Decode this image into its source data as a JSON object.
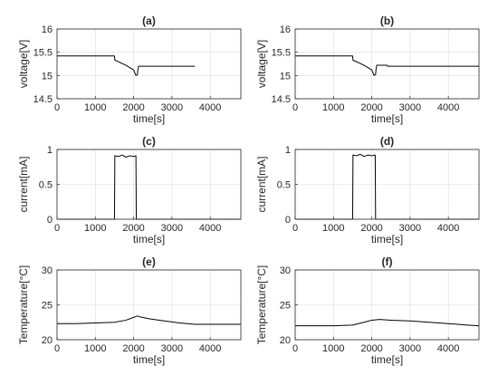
{
  "chart_data": [
    {
      "type": "line",
      "title": "(a)",
      "xlabel": "time[s]",
      "ylabel": "voltage[V]",
      "xlim": [
        0,
        4800
      ],
      "ylim": [
        14.5,
        16
      ],
      "xticks": [
        0,
        1000,
        2000,
        3000,
        4000
      ],
      "xtick_labels": [
        "0",
        "1000",
        "2000",
        "3000",
        "4000"
      ],
      "yticks": [
        14.5,
        15,
        15.5,
        16
      ],
      "ytick_labels": [
        "14.5",
        "15",
        "15.5",
        "16"
      ],
      "grid": true,
      "series": [
        {
          "x": [
            0,
            1500,
            1510,
            1800,
            2000,
            2040,
            2060,
            2100,
            2110,
            2130,
            2200,
            2500,
            3600
          ],
          "y": [
            15.42,
            15.42,
            15.33,
            15.22,
            15.12,
            15.04,
            15.0,
            15.02,
            15.12,
            15.2,
            15.2,
            15.2,
            15.2
          ]
        }
      ]
    },
    {
      "type": "line",
      "title": "(b)",
      "xlabel": "time[s]",
      "ylabel": "voltage[V]",
      "xlim": [
        0,
        4800
      ],
      "ylim": [
        14.5,
        16
      ],
      "xticks": [
        0,
        1000,
        2000,
        3000,
        4000
      ],
      "xtick_labels": [
        "0",
        "1000",
        "2000",
        "3000",
        "4000"
      ],
      "yticks": [
        14.5,
        15,
        15.5,
        16
      ],
      "ytick_labels": [
        "14.5",
        "15",
        "15.5",
        "16"
      ],
      "grid": true,
      "series": [
        {
          "x": [
            0,
            1500,
            1510,
            1800,
            2000,
            2040,
            2060,
            2100,
            2110,
            2130,
            2200,
            2400,
            2410,
            2500,
            3600,
            4800
          ],
          "y": [
            15.42,
            15.42,
            15.33,
            15.22,
            15.12,
            15.04,
            15.0,
            15.02,
            15.12,
            15.22,
            15.22,
            15.22,
            15.2,
            15.2,
            15.2,
            15.2
          ]
        }
      ]
    },
    {
      "type": "line",
      "title": "(c)",
      "xlabel": "time[s]",
      "ylabel": "current[mA]",
      "xlim": [
        0,
        4800
      ],
      "ylim": [
        0,
        1
      ],
      "xticks": [
        0,
        1000,
        2000,
        3000,
        4000
      ],
      "xtick_labels": [
        "0",
        "1000",
        "2000",
        "3000",
        "4000"
      ],
      "yticks": [
        0,
        0.5,
        1
      ],
      "ytick_labels": [
        "0",
        "0.5",
        "1"
      ],
      "grid": true,
      "series": [
        {
          "x": [
            0,
            1500,
            1510,
            1600,
            1700,
            1800,
            1900,
            2000,
            2060,
            2070,
            4800
          ],
          "y": [
            0,
            0,
            0.91,
            0.9,
            0.92,
            0.89,
            0.91,
            0.9,
            0.91,
            0,
            0
          ]
        }
      ]
    },
    {
      "type": "line",
      "title": "(d)",
      "xlabel": "time[s]",
      "ylabel": "current[mA]",
      "xlim": [
        0,
        4800
      ],
      "ylim": [
        0,
        1
      ],
      "xticks": [
        0,
        1000,
        2000,
        3000,
        4000
      ],
      "xtick_labels": [
        "0",
        "1000",
        "2000",
        "3000",
        "4000"
      ],
      "yticks": [
        0,
        0.5,
        1
      ],
      "ytick_labels": [
        "0",
        "0.5",
        "1"
      ],
      "grid": true,
      "series": [
        {
          "x": [
            0,
            1500,
            1510,
            1600,
            1700,
            1800,
            1900,
            2000,
            2090,
            2100,
            4800
          ],
          "y": [
            0,
            0,
            0.92,
            0.91,
            0.93,
            0.9,
            0.92,
            0.91,
            0.92,
            0,
            0
          ]
        }
      ]
    },
    {
      "type": "line",
      "title": "(e)",
      "xlabel": "time[s]",
      "ylabel": "Temperature[°C]",
      "xlim": [
        0,
        4800
      ],
      "ylim": [
        20,
        30
      ],
      "xticks": [
        0,
        1000,
        2000,
        3000,
        4000
      ],
      "xtick_labels": [
        "0",
        "1000",
        "2000",
        "3000",
        "4000"
      ],
      "yticks": [
        20,
        25,
        30
      ],
      "ytick_labels": [
        "20",
        "25",
        "30"
      ],
      "grid": true,
      "series": [
        {
          "x": [
            0,
            500,
            1000,
            1500,
            1800,
            2000,
            2100,
            2150,
            2400,
            2800,
            3200,
            3600,
            4000,
            4800
          ],
          "y": [
            22.3,
            22.3,
            22.4,
            22.5,
            22.8,
            23.2,
            23.4,
            23.3,
            23.0,
            22.7,
            22.4,
            22.2,
            22.2,
            22.2
          ]
        }
      ]
    },
    {
      "type": "line",
      "title": "(f)",
      "xlabel": "time[s]",
      "ylabel": "Temperature[°C]",
      "xlim": [
        0,
        4800
      ],
      "ylim": [
        20,
        30
      ],
      "xticks": [
        0,
        1000,
        2000,
        3000,
        4000
      ],
      "xtick_labels": [
        "0",
        "1000",
        "2000",
        "3000",
        "4000"
      ],
      "yticks": [
        20,
        25,
        30
      ],
      "ytick_labels": [
        "20",
        "25",
        "30"
      ],
      "grid": true,
      "series": [
        {
          "x": [
            0,
            500,
            1000,
            1500,
            1800,
            2000,
            2200,
            2500,
            3000,
            3500,
            4000,
            4500,
            4800
          ],
          "y": [
            22.0,
            22.0,
            22.0,
            22.1,
            22.5,
            22.8,
            22.9,
            22.8,
            22.7,
            22.5,
            22.3,
            22.1,
            22.0
          ]
        }
      ]
    }
  ]
}
